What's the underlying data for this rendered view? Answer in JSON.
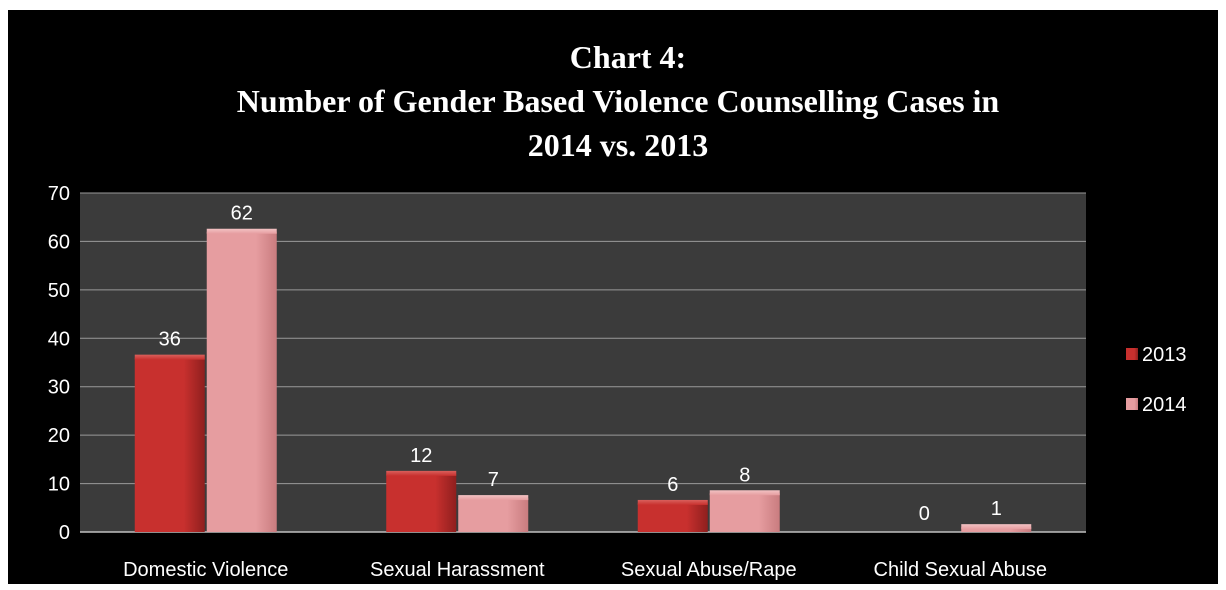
{
  "chart_data": {
    "type": "bar",
    "title_lines": [
      "Chart 4:",
      "Number of Gender Based Violence Counselling Cases in",
      "2014 vs. 2013"
    ],
    "categories": [
      "Domestic Violence",
      "Sexual Harassment",
      "Sexual Abuse/Rape",
      "Child Sexual Abuse"
    ],
    "series": [
      {
        "name": "2013",
        "values": [
          36,
          12,
          6,
          0
        ],
        "color": "#c0302e"
      },
      {
        "name": "2014",
        "values": [
          62,
          7,
          8,
          1
        ],
        "color": "#e59a9c"
      }
    ],
    "ylim": [
      0,
      70
    ],
    "yticks": [
      0,
      10,
      20,
      30,
      40,
      50,
      60,
      70
    ],
    "grid": true,
    "legend": "right",
    "plot_background": "#3b3b3b",
    "background": "#000000"
  }
}
